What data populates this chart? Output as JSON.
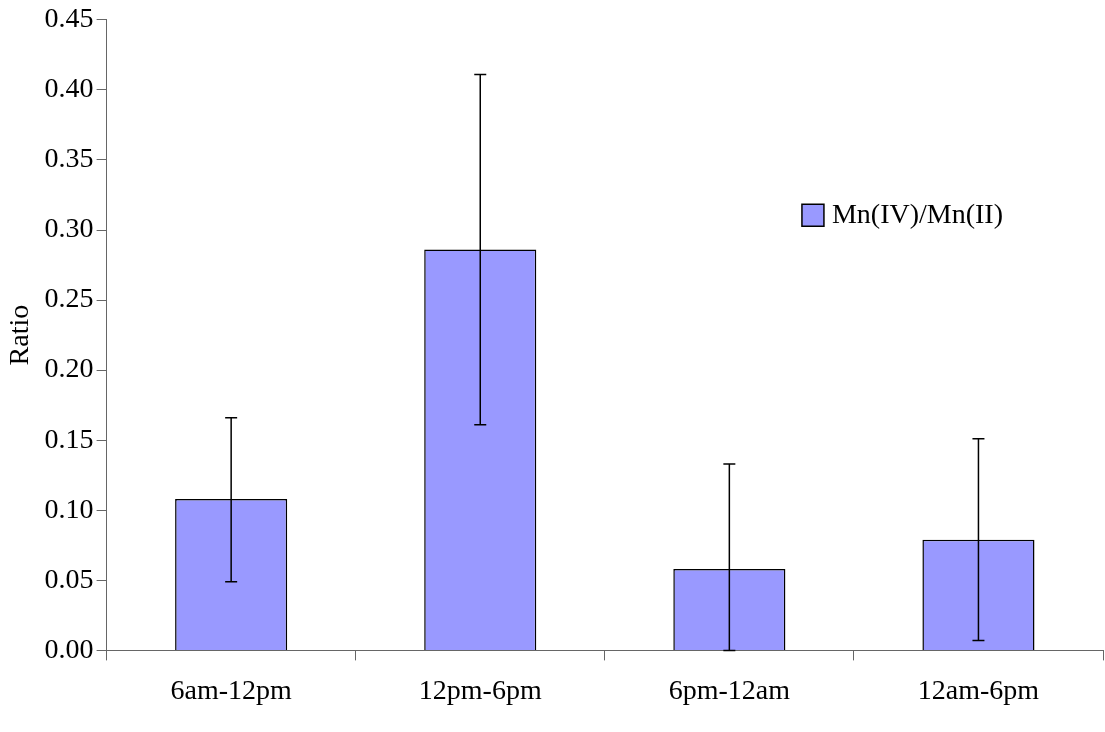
{
  "chart_data": {
    "type": "bar",
    "ylabel": "Ratio",
    "categories": [
      "6am-12pm",
      "12pm-6pm",
      "6pm-12am",
      "12am-6pm"
    ],
    "series": [
      {
        "name": "Mn(IV)/Mn(II)",
        "color": "#9999ff",
        "values": [
          0.108,
          0.286,
          0.058,
          0.079
        ],
        "errors": [
          [
            0.049,
            0.166
          ],
          [
            0.161,
            0.411
          ],
          [
            0,
            0.133
          ],
          [
            0.007,
            0.151
          ]
        ]
      }
    ],
    "ylim": [
      0,
      0.45
    ],
    "yticks": [
      {
        "value": 0,
        "label": "0.00"
      },
      {
        "value": 0.05,
        "label": "0.05"
      },
      {
        "value": 0.1,
        "label": "0.10"
      },
      {
        "value": 0.15,
        "label": "0.15"
      },
      {
        "value": 0.2,
        "label": "0.20"
      },
      {
        "value": 0.25,
        "label": "0.25"
      },
      {
        "value": 0.3,
        "label": "0.30"
      },
      {
        "value": 0.35,
        "label": "0.35"
      },
      {
        "value": 0.4,
        "label": "0.40"
      },
      {
        "value": 0.45,
        "label": "0.45"
      }
    ],
    "legend": "top right"
  }
}
